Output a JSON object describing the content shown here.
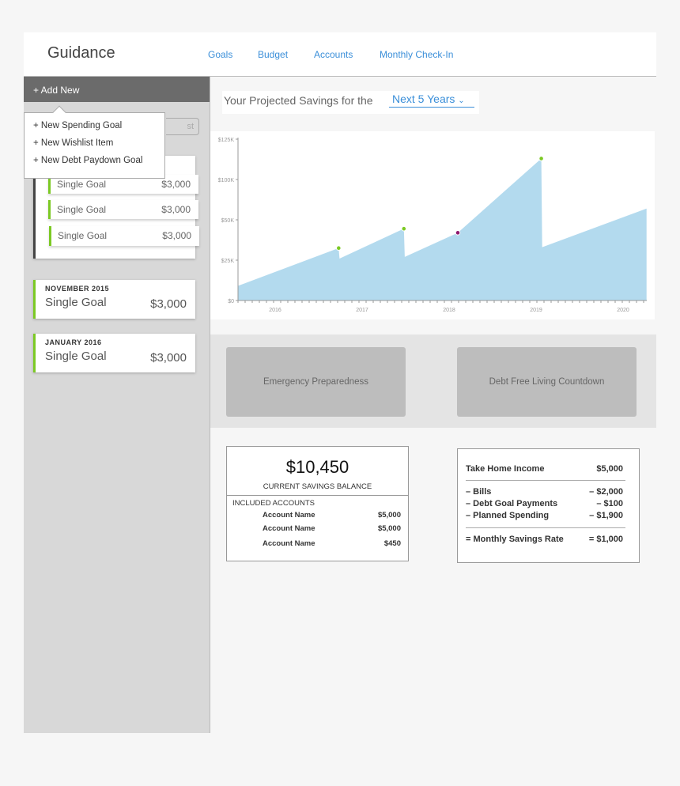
{
  "header": {
    "brand": "Guidance",
    "nav": [
      "Goals",
      "Budget",
      "Accounts",
      "Monthly Check-In"
    ]
  },
  "sidebar": {
    "add_new": "+ Add New",
    "search_partial": "st",
    "menu": [
      "+ New Spending Goal",
      "+ New Wishlist Item",
      "+ New Debt Paydown Goal"
    ],
    "group_goals": [
      {
        "name": "Single Goal",
        "amount": "$3,000"
      },
      {
        "name": "Single Goal",
        "amount": "$3,000"
      },
      {
        "name": "Single Goal",
        "amount": "$3,000"
      }
    ],
    "months": [
      {
        "month": "NOVEMBER 2015",
        "name": "Single Goal",
        "amount": "$3,000"
      },
      {
        "month": "JANUARY 2016",
        "name": "Single Goal",
        "amount": "$3,000"
      }
    ]
  },
  "projection": {
    "label": "Your Projected Savings for the",
    "range": "Next 5 Years"
  },
  "chart_data": {
    "type": "area",
    "color": "#b3daee",
    "y_ticks": [
      {
        "label": "$0",
        "value": 0
      },
      {
        "label": "$25K",
        "value": 25000
      },
      {
        "label": "$50K",
        "value": 50000
      },
      {
        "label": "$100K",
        "value": 100000
      },
      {
        "label": "$125K",
        "value": 125000
      }
    ],
    "x_ticks": [
      "2016",
      "2017",
      "2018",
      "2019",
      "2020"
    ],
    "points": [
      [
        2015.57,
        9000
      ],
      [
        2016.73,
        32500
      ],
      [
        2016.74,
        26000
      ],
      [
        2017.48,
        44500
      ],
      [
        2017.49,
        27000
      ],
      [
        2018.1,
        42000
      ],
      [
        2019.06,
        113000
      ],
      [
        2019.07,
        33000
      ],
      [
        2020.27,
        64000
      ]
    ],
    "markers": [
      {
        "x": 2016.73,
        "y": 32500,
        "color": "#7cc924"
      },
      {
        "x": 2017.48,
        "y": 44500,
        "color": "#7cc924"
      },
      {
        "x": 2018.1,
        "y": 42000,
        "color": "#8e1a6e"
      },
      {
        "x": 2019.06,
        "y": 113000,
        "color": "#7cc924"
      }
    ]
  },
  "widgets": [
    "Emergency Preparedness",
    "Debt Free Living Countdown"
  ],
  "balance": {
    "amount": "$10,450",
    "label": "CURRENT SAVINGS BALANCE",
    "accounts_label": "INCLUDED ACCOUNTS",
    "accounts": [
      {
        "name": "Account Name",
        "amount": "$5,000"
      },
      {
        "name": "Account Name",
        "amount": "$5,000"
      },
      {
        "name": "Account Name",
        "amount": "$450"
      }
    ]
  },
  "budget": {
    "income": {
      "label": "Take Home Income",
      "value": "$5,000"
    },
    "deductions": [
      {
        "label": "– Bills",
        "value": "– $2,000"
      },
      {
        "label": "– Debt Goal Payments",
        "value": "– $100"
      },
      {
        "label": "– Planned Spending",
        "value": "– $1,900"
      }
    ],
    "result": {
      "label": "= Monthly Savings Rate",
      "value": "= $1,000"
    }
  }
}
